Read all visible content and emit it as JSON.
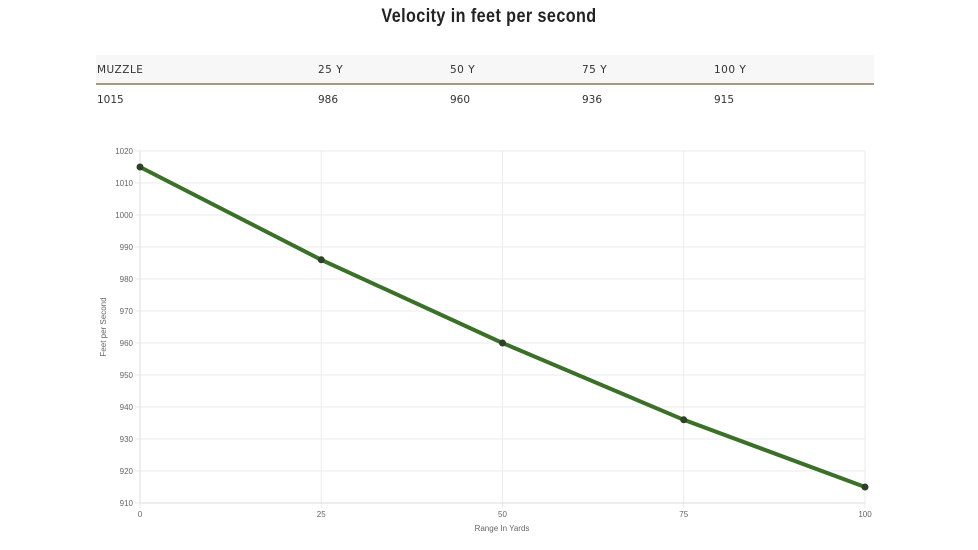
{
  "title": "Velocity in feet per second",
  "table": {
    "headers": [
      "MUZZLE",
      "25 Y",
      "50 Y",
      "75 Y",
      "100 Y"
    ],
    "values": [
      "1015",
      "986",
      "960",
      "936",
      "915"
    ]
  },
  "chart_data": {
    "type": "line",
    "x": [
      0,
      25,
      50,
      75,
      100
    ],
    "values": [
      1015,
      986,
      960,
      936,
      915
    ],
    "xlabel": "Range In Yards",
    "ylabel": "Feet per Second",
    "xlim": [
      0,
      100
    ],
    "ylim": [
      910,
      1020
    ],
    "xticks": [
      0,
      25,
      50,
      75,
      100
    ],
    "yticks": [
      910,
      920,
      930,
      940,
      950,
      960,
      970,
      980,
      990,
      1000,
      1010,
      1020
    ],
    "grid": true,
    "line_color": "#3a7028",
    "point_color": "#2f3f2a"
  }
}
